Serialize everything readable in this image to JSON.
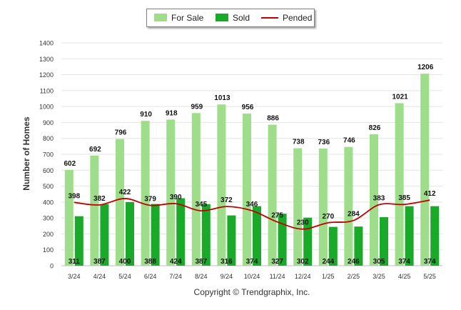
{
  "chart_data": {
    "type": "bar",
    "ylabel": "Number of Homes",
    "ylim": [
      0,
      1400
    ],
    "yticks": [
      "0",
      "100",
      "200",
      "300",
      "400",
      "500",
      "600",
      "700",
      "800",
      "900",
      "1000",
      "1100",
      "1200",
      "1300",
      "1400"
    ],
    "categories": [
      "3/24",
      "4/24",
      "5/24",
      "6/24",
      "7/24",
      "8/24",
      "9/24",
      "10/24",
      "11/24",
      "12/24",
      "1/25",
      "2/25",
      "3/25",
      "4/25",
      "5/25"
    ],
    "series": [
      {
        "name": "For Sale",
        "kind": "bar",
        "color": "#9edd8a",
        "values": [
          602,
          692,
          796,
          910,
          918,
          959,
          1013,
          956,
          886,
          738,
          736,
          746,
          826,
          1021,
          1206
        ]
      },
      {
        "name": "Sold",
        "kind": "bar",
        "color": "#1aaa2a",
        "values": [
          311,
          387,
          400,
          388,
          424,
          387,
          316,
          374,
          327,
          302,
          244,
          246,
          305,
          374,
          374
        ]
      },
      {
        "name": "Pended",
        "kind": "line",
        "color": "#c00000",
        "values": [
          398,
          382,
          422,
          379,
          390,
          345,
          372,
          346,
          275,
          230,
          270,
          284,
          383,
          385,
          412
        ]
      }
    ],
    "legend_position": "top-center",
    "grid": true
  },
  "footer": {
    "copyright": "Copyright © Trendgraphix, Inc."
  }
}
